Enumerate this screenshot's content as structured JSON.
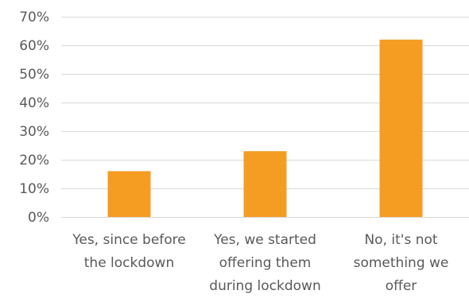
{
  "chart_data": {
    "type": "bar",
    "categories": [
      "Yes, since before the lockdown",
      "Yes, we started offering them during lockdown",
      "No, it's not something we offer"
    ],
    "category_label_lines": [
      [
        "Yes, since before",
        "the lockdown"
      ],
      [
        "Yes, we started",
        "offering them",
        "during lockdown"
      ],
      [
        "No, it's not",
        "something we",
        "offer"
      ]
    ],
    "values": [
      16,
      23,
      62
    ],
    "value_unit": "%",
    "ylim": [
      0,
      70
    ],
    "yticks": [
      0,
      10,
      20,
      30,
      40,
      50,
      60,
      70
    ],
    "ytick_labels": [
      "0%",
      "10%",
      "20%",
      "30%",
      "40%",
      "50%",
      "60%",
      "70%"
    ],
    "title": "",
    "xlabel": "",
    "ylabel": "",
    "grid": true,
    "legend": "none",
    "colors": {
      "bar": "#F59C23",
      "grid": "#D9D9D9",
      "text": "#595959"
    }
  }
}
